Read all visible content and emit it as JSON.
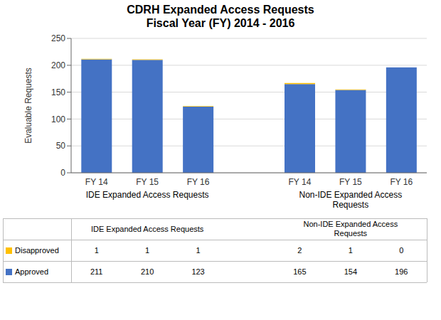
{
  "chart_data": {
    "type": "bar",
    "title": "CDRH Expanded Access Requests\nFiscal Year (FY) 2014 - 2016",
    "ylabel": "Evaluable Requests",
    "ylim": [
      0,
      250
    ],
    "yticks": [
      0,
      50,
      100,
      150,
      200,
      250
    ],
    "grid": true,
    "stacked": true,
    "groups": [
      {
        "label": "IDE Expanded Access Requests",
        "categories": [
          "FY 14",
          "FY 15",
          "FY 16"
        ]
      },
      {
        "label": "Non-IDE Expanded Access\nRequests",
        "categories": [
          "FY 14",
          "FY 15",
          "FY 16"
        ]
      }
    ],
    "series": [
      {
        "name": "Approved",
        "color": "#4472C4",
        "values": [
          211,
          210,
          123,
          165,
          154,
          196
        ]
      },
      {
        "name": "Disapproved",
        "color": "#FFC000",
        "values": [
          1,
          1,
          1,
          2,
          1,
          0
        ]
      }
    ]
  }
}
